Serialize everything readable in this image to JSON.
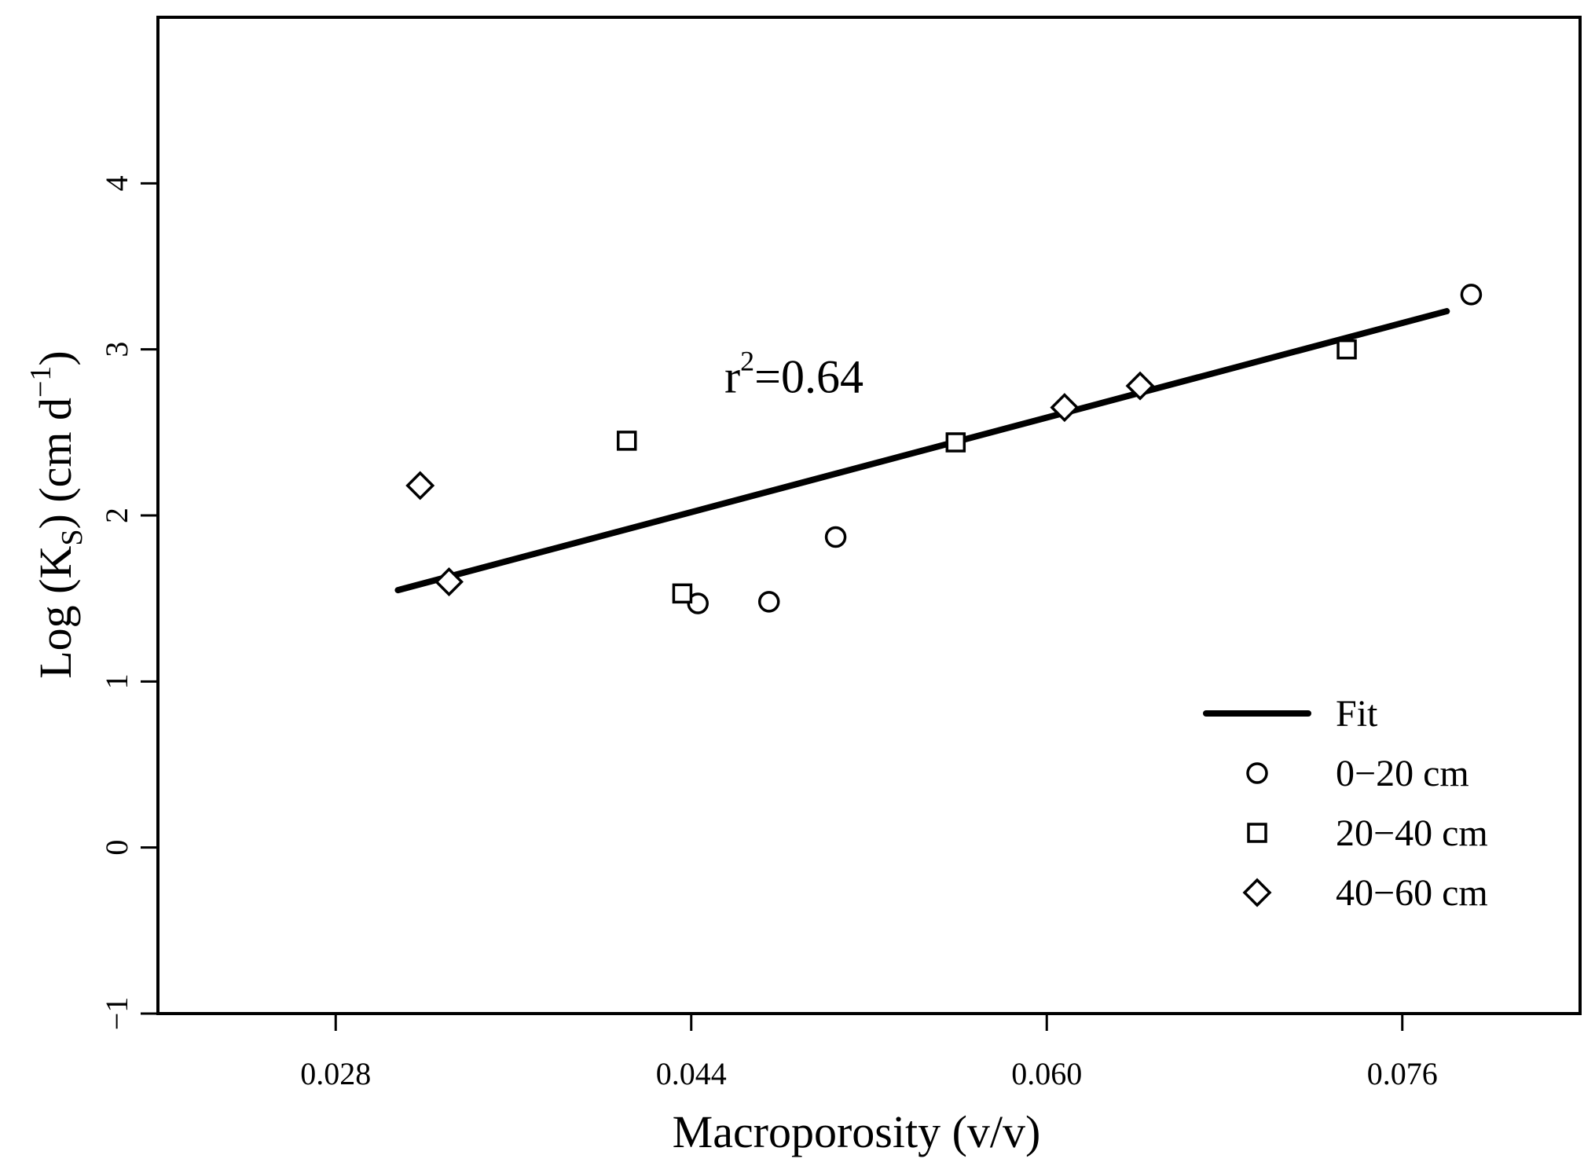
{
  "chart_data": {
    "type": "scatter",
    "title": "",
    "xlabel": "Macroporosity (v/v)",
    "ylabel": "Log (K",
    "ylabel_subscript": "S",
    "ylabel_suffix": ") (cm d",
    "ylabel_superscript": "−1",
    "ylabel_close": ")",
    "xlim": [
      0.02,
      0.084
    ],
    "ylim": [
      -1,
      5
    ],
    "x_ticks": [
      0.028,
      0.044,
      0.06,
      0.076
    ],
    "x_tick_labels": [
      "0.028",
      "0.044",
      "0.060",
      "0.076"
    ],
    "y_ticks": [
      -1,
      0,
      1,
      2,
      3,
      4
    ],
    "y_tick_labels": [
      "−1",
      "0",
      "1",
      "2",
      "3",
      "4"
    ],
    "grid": false,
    "legend_position": "bottom-right",
    "fit": {
      "name": "Fit",
      "x": [
        0.0308,
        0.078
      ],
      "y": [
        1.55,
        3.23
      ]
    },
    "series": [
      {
        "name": "0−20 cm",
        "marker": "circle",
        "points": [
          {
            "x": 0.0443,
            "y": 1.47
          },
          {
            "x": 0.0475,
            "y": 1.48
          },
          {
            "x": 0.0505,
            "y": 1.87
          },
          {
            "x": 0.0791,
            "y": 3.33
          }
        ]
      },
      {
        "name": "20−40 cm",
        "marker": "square",
        "points": [
          {
            "x": 0.0411,
            "y": 2.45
          },
          {
            "x": 0.0436,
            "y": 1.53
          },
          {
            "x": 0.0559,
            "y": 2.44
          },
          {
            "x": 0.0735,
            "y": 3.0
          }
        ]
      },
      {
        "name": "40−60 cm",
        "marker": "diamond",
        "points": [
          {
            "x": 0.0318,
            "y": 2.18
          },
          {
            "x": 0.0331,
            "y": 1.6
          },
          {
            "x": 0.0608,
            "y": 2.65
          },
          {
            "x": 0.0642,
            "y": 2.78
          }
        ]
      }
    ],
    "annotation": {
      "base": "r",
      "superscript": "2",
      "rest": "=0.64",
      "x": 0.0455,
      "y": 2.74
    }
  }
}
